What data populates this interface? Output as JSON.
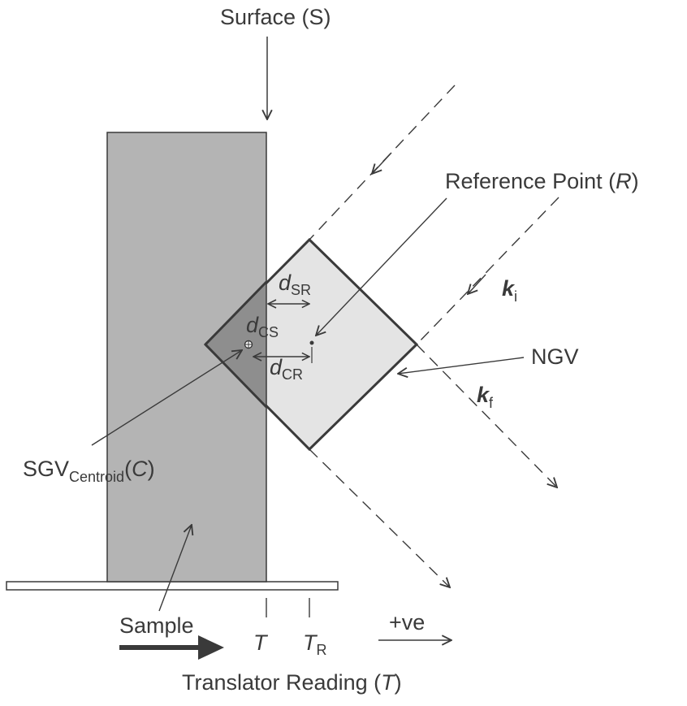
{
  "labels": {
    "surface": "Surface (S)",
    "reference_point_prefix": "Reference Point (",
    "reference_point_var": "R",
    "reference_point_suffix": ")",
    "k_i_main": "k",
    "k_i_sub": "i",
    "k_f_main": "k",
    "k_f_sub": "f",
    "ngv": "NGV",
    "d_sr_main": "d",
    "d_sr_sub": "SR",
    "d_cs_main": "d",
    "d_cs_sub": "CS",
    "d_cr_main": "d",
    "d_cr_sub": "CR",
    "sgv_main": "SGV",
    "sgv_sub": "Centroid",
    "sgv_paren_open": "(",
    "sgv_var": "C",
    "sgv_paren_close": ")",
    "sample": "Sample",
    "t_tick": "T",
    "tr_tick_main": "T",
    "tr_tick_sub": "R",
    "positive_direction": "+ve",
    "translator_prefix": "Translator Reading (",
    "translator_var": "T",
    "translator_suffix": ")"
  },
  "colors": {
    "sample_fill": "#b4b4b4",
    "gauge_fill": "#e4e4e4",
    "overlap_fill": "#8e8e8e",
    "outline": "#3a3a3a"
  }
}
